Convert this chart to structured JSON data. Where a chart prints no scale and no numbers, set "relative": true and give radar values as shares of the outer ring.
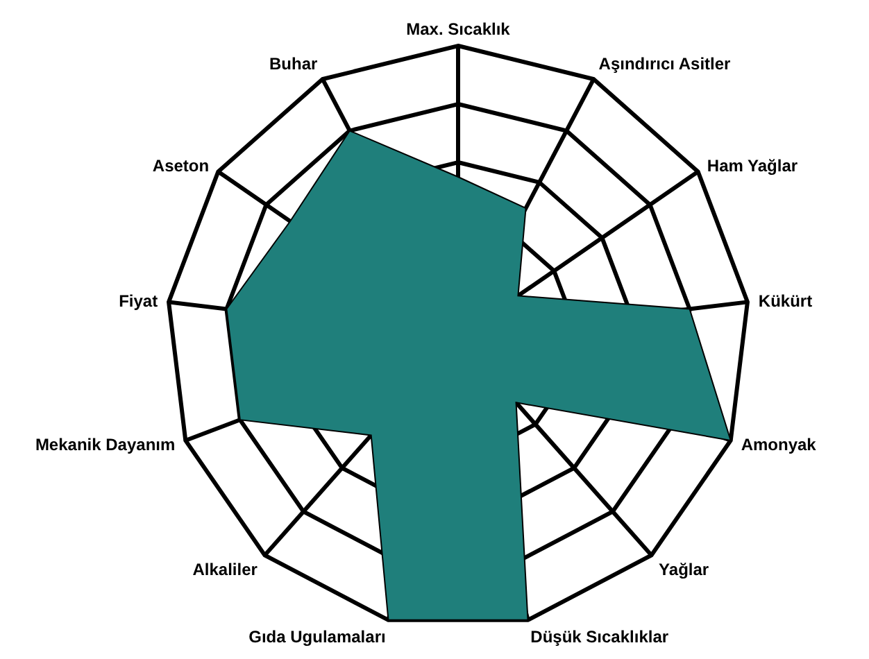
{
  "chart_data": {
    "type": "radar",
    "relative": true,
    "grid": true,
    "categories": [
      "Max. Sıcaklık",
      "Aşındırıcı Asitler",
      "Ham Yağlar",
      "Kükürt",
      "Amonyak",
      "Yağlar",
      "Düşük Sıcaklıklar",
      "Gıda Ugulamaları",
      "Alkaliler",
      "Mekanik Dayanım",
      "Fiyat",
      "Aseton",
      "Buhar"
    ],
    "series": [
      {
        "color": "#1f7f7b",
        "values": [
          0.55,
          0.5,
          0.25,
          0.8,
          1,
          0.3,
          1,
          1,
          0.45,
          0.8,
          0.8,
          0.7,
          0.8
        ]
      }
    ]
  }
}
